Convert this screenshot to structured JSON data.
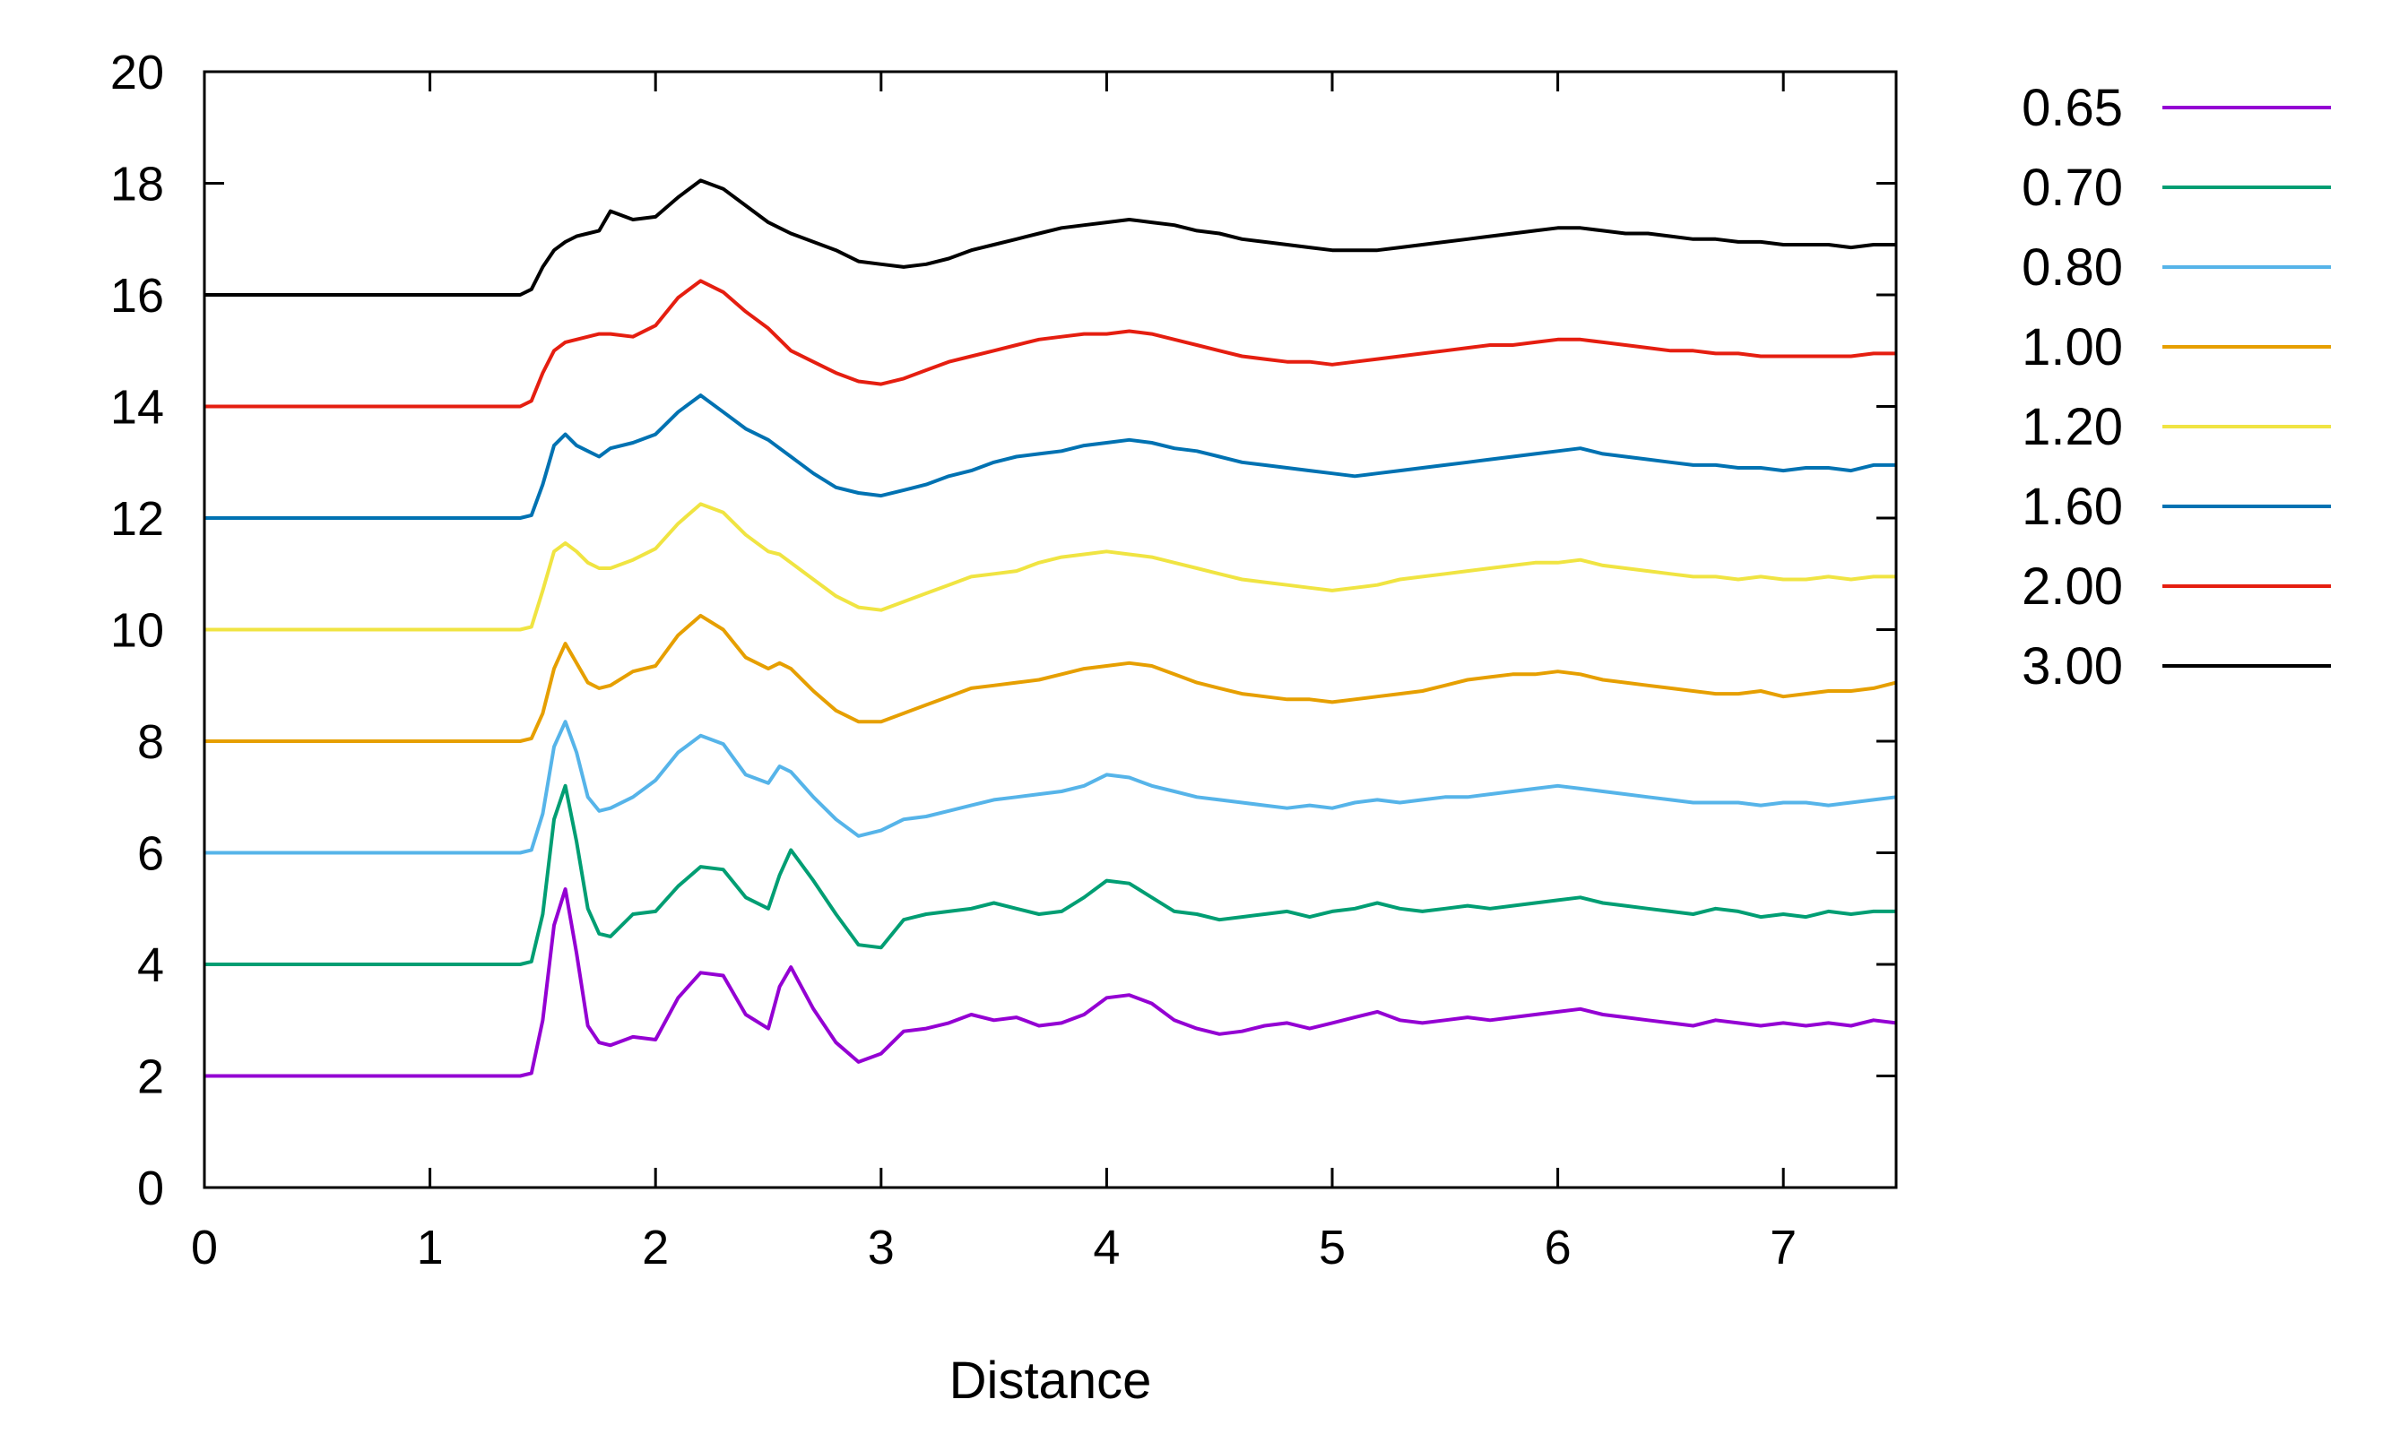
{
  "chart_data": {
    "type": "line",
    "title": "",
    "xlabel": "Distance",
    "ylabel": "",
    "xlim": [
      0,
      7.5
    ],
    "ylim": [
      0,
      20
    ],
    "x_ticks": [
      "0",
      "1",
      "2",
      "3",
      "4",
      "5",
      "6",
      "7"
    ],
    "y_ticks": [
      "0",
      "2",
      "4",
      "6",
      "8",
      "10",
      "12",
      "14",
      "16",
      "18",
      "20"
    ],
    "grid": false,
    "legend_position": "outside-right",
    "series": [
      {
        "name": "0.65",
        "color": "#9400d3",
        "offset": 2,
        "x": [
          1.4,
          1.45,
          1.5,
          1.55,
          1.6,
          1.65,
          1.7,
          1.75,
          1.8,
          1.9,
          2.0,
          2.1,
          2.2,
          2.3,
          2.4,
          2.5,
          2.55,
          2.6,
          2.7,
          2.8,
          2.9,
          3.0,
          3.1,
          3.2,
          3.3,
          3.4,
          3.5,
          3.6,
          3.7,
          3.8,
          3.9,
          4.0,
          4.1,
          4.2,
          4.3,
          4.4,
          4.5,
          4.6,
          4.7,
          4.8,
          4.9,
          5.0,
          5.1,
          5.2,
          5.3,
          5.4,
          5.5,
          5.6,
          5.7,
          5.8,
          5.9,
          6.0,
          6.1,
          6.2,
          6.3,
          6.4,
          6.5,
          6.6,
          6.7,
          6.8,
          6.9,
          7.0,
          7.1,
          7.2,
          7.3,
          7.4,
          7.5
        ],
        "y": [
          2.0,
          2.05,
          3.0,
          4.7,
          5.35,
          4.2,
          2.9,
          2.6,
          2.55,
          2.7,
          2.65,
          3.4,
          3.85,
          3.8,
          3.1,
          2.85,
          3.6,
          3.95,
          3.2,
          2.6,
          2.25,
          2.4,
          2.8,
          2.85,
          2.95,
          3.1,
          3.0,
          3.05,
          2.9,
          2.95,
          3.1,
          3.4,
          3.45,
          3.3,
          3.0,
          2.85,
          2.75,
          2.8,
          2.9,
          2.95,
          2.85,
          2.95,
          3.05,
          3.15,
          3.0,
          2.95,
          3.0,
          3.05,
          3.0,
          3.05,
          3.1,
          3.15,
          3.2,
          3.1,
          3.05,
          3.0,
          2.95,
          2.9,
          3.0,
          2.95,
          2.9,
          2.95,
          2.9,
          2.95,
          2.9,
          3.0,
          2.95
        ]
      },
      {
        "name": "0.70",
        "color": "#009e73",
        "offset": 4,
        "x": [
          1.4,
          1.45,
          1.5,
          1.55,
          1.6,
          1.65,
          1.7,
          1.75,
          1.8,
          1.9,
          2.0,
          2.1,
          2.2,
          2.3,
          2.4,
          2.5,
          2.55,
          2.6,
          2.7,
          2.8,
          2.9,
          3.0,
          3.1,
          3.2,
          3.3,
          3.4,
          3.5,
          3.6,
          3.7,
          3.8,
          3.9,
          4.0,
          4.1,
          4.2,
          4.3,
          4.4,
          4.5,
          4.6,
          4.7,
          4.8,
          4.9,
          5.0,
          5.1,
          5.2,
          5.3,
          5.4,
          5.5,
          5.6,
          5.7,
          5.8,
          5.9,
          6.0,
          6.1,
          6.2,
          6.3,
          6.4,
          6.5,
          6.6,
          6.7,
          6.8,
          6.9,
          7.0,
          7.1,
          7.2,
          7.3,
          7.4,
          7.5
        ],
        "y": [
          4.0,
          4.05,
          4.9,
          6.6,
          7.2,
          6.2,
          5.0,
          4.55,
          4.5,
          4.9,
          4.95,
          5.4,
          5.75,
          5.7,
          5.2,
          5.0,
          5.6,
          6.05,
          5.5,
          4.9,
          4.35,
          4.3,
          4.8,
          4.9,
          4.95,
          5.0,
          5.1,
          5.0,
          4.9,
          4.95,
          5.2,
          5.5,
          5.45,
          5.2,
          4.95,
          4.9,
          4.8,
          4.85,
          4.9,
          4.95,
          4.85,
          4.95,
          5.0,
          5.1,
          5.0,
          4.95,
          5.0,
          5.05,
          5.0,
          5.05,
          5.1,
          5.15,
          5.2,
          5.1,
          5.05,
          5.0,
          4.95,
          4.9,
          5.0,
          4.95,
          4.85,
          4.9,
          4.85,
          4.95,
          4.9,
          4.95,
          4.95
        ]
      },
      {
        "name": "0.80",
        "color": "#56b4e9",
        "offset": 6,
        "x": [
          1.4,
          1.45,
          1.5,
          1.55,
          1.6,
          1.65,
          1.7,
          1.75,
          1.8,
          1.9,
          2.0,
          2.1,
          2.2,
          2.3,
          2.4,
          2.5,
          2.55,
          2.6,
          2.7,
          2.8,
          2.9,
          3.0,
          3.1,
          3.2,
          3.3,
          3.4,
          3.5,
          3.6,
          3.7,
          3.8,
          3.9,
          4.0,
          4.1,
          4.2,
          4.3,
          4.4,
          4.5,
          4.6,
          4.7,
          4.8,
          4.9,
          5.0,
          5.1,
          5.2,
          5.3,
          5.4,
          5.5,
          5.6,
          5.7,
          5.8,
          5.9,
          6.0,
          6.1,
          6.2,
          6.3,
          6.4,
          6.5,
          6.6,
          6.7,
          6.8,
          6.9,
          7.0,
          7.1,
          7.2,
          7.3,
          7.4,
          7.5
        ],
        "y": [
          6.0,
          6.05,
          6.7,
          7.9,
          8.35,
          7.8,
          7.0,
          6.75,
          6.8,
          7.0,
          7.3,
          7.8,
          8.1,
          7.95,
          7.4,
          7.25,
          7.55,
          7.45,
          7.0,
          6.6,
          6.3,
          6.4,
          6.6,
          6.65,
          6.75,
          6.85,
          6.95,
          7.0,
          7.05,
          7.1,
          7.2,
          7.4,
          7.35,
          7.2,
          7.1,
          7.0,
          6.95,
          6.9,
          6.85,
          6.8,
          6.85,
          6.8,
          6.9,
          6.95,
          6.9,
          6.95,
          7.0,
          7.0,
          7.05,
          7.1,
          7.15,
          7.2,
          7.15,
          7.1,
          7.05,
          7.0,
          6.95,
          6.9,
          6.9,
          6.9,
          6.85,
          6.9,
          6.9,
          6.85,
          6.9,
          6.95,
          7.0
        ]
      },
      {
        "name": "1.00",
        "color": "#e69f00",
        "offset": 8,
        "x": [
          1.4,
          1.45,
          1.5,
          1.55,
          1.6,
          1.65,
          1.7,
          1.75,
          1.8,
          1.9,
          2.0,
          2.1,
          2.2,
          2.3,
          2.4,
          2.5,
          2.55,
          2.6,
          2.7,
          2.8,
          2.9,
          3.0,
          3.1,
          3.2,
          3.3,
          3.4,
          3.5,
          3.6,
          3.7,
          3.8,
          3.9,
          4.0,
          4.1,
          4.2,
          4.3,
          4.4,
          4.5,
          4.6,
          4.7,
          4.8,
          4.9,
          5.0,
          5.1,
          5.2,
          5.3,
          5.4,
          5.5,
          5.6,
          5.7,
          5.8,
          5.9,
          6.0,
          6.1,
          6.2,
          6.3,
          6.4,
          6.5,
          6.6,
          6.7,
          6.8,
          6.9,
          7.0,
          7.1,
          7.2,
          7.3,
          7.4,
          7.5
        ],
        "y": [
          8.0,
          8.05,
          8.5,
          9.3,
          9.75,
          9.4,
          9.05,
          8.95,
          9.0,
          9.25,
          9.35,
          9.9,
          10.25,
          10.0,
          9.5,
          9.3,
          9.4,
          9.3,
          8.9,
          8.55,
          8.35,
          8.35,
          8.5,
          8.65,
          8.8,
          8.95,
          9.0,
          9.05,
          9.1,
          9.2,
          9.3,
          9.35,
          9.4,
          9.35,
          9.2,
          9.05,
          8.95,
          8.85,
          8.8,
          8.75,
          8.75,
          8.7,
          8.75,
          8.8,
          8.85,
          8.9,
          9.0,
          9.1,
          9.15,
          9.2,
          9.2,
          9.25,
          9.2,
          9.1,
          9.05,
          9.0,
          8.95,
          8.9,
          8.85,
          8.85,
          8.9,
          8.8,
          8.85,
          8.9,
          8.9,
          8.95,
          9.05
        ]
      },
      {
        "name": "1.20",
        "color": "#f0e442",
        "offset": 10,
        "x": [
          1.4,
          1.45,
          1.5,
          1.55,
          1.6,
          1.65,
          1.7,
          1.75,
          1.8,
          1.9,
          2.0,
          2.1,
          2.2,
          2.3,
          2.4,
          2.5,
          2.55,
          2.6,
          2.7,
          2.8,
          2.9,
          3.0,
          3.1,
          3.2,
          3.3,
          3.4,
          3.5,
          3.6,
          3.7,
          3.8,
          3.9,
          4.0,
          4.1,
          4.2,
          4.3,
          4.4,
          4.5,
          4.6,
          4.7,
          4.8,
          4.9,
          5.0,
          5.1,
          5.2,
          5.3,
          5.4,
          5.5,
          5.6,
          5.7,
          5.8,
          5.9,
          6.0,
          6.1,
          6.2,
          6.3,
          6.4,
          6.5,
          6.6,
          6.7,
          6.8,
          6.9,
          7.0,
          7.1,
          7.2,
          7.3,
          7.4,
          7.5
        ],
        "y": [
          10.0,
          10.05,
          10.7,
          11.4,
          11.55,
          11.4,
          11.2,
          11.1,
          11.1,
          11.25,
          11.45,
          11.9,
          12.25,
          12.1,
          11.7,
          11.4,
          11.35,
          11.2,
          10.9,
          10.6,
          10.4,
          10.35,
          10.5,
          10.65,
          10.8,
          10.95,
          11.0,
          11.05,
          11.2,
          11.3,
          11.35,
          11.4,
          11.35,
          11.3,
          11.2,
          11.1,
          11.0,
          10.9,
          10.85,
          10.8,
          10.75,
          10.7,
          10.75,
          10.8,
          10.9,
          10.95,
          11.0,
          11.05,
          11.1,
          11.15,
          11.2,
          11.2,
          11.25,
          11.15,
          11.1,
          11.05,
          11.0,
          10.95,
          10.95,
          10.9,
          10.95,
          10.9,
          10.9,
          10.95,
          10.9,
          10.95,
          10.95
        ]
      },
      {
        "name": "1.60",
        "color": "#0072b2",
        "offset": 12,
        "x": [
          1.4,
          1.45,
          1.5,
          1.55,
          1.6,
          1.65,
          1.7,
          1.75,
          1.8,
          1.9,
          2.0,
          2.1,
          2.2,
          2.3,
          2.4,
          2.5,
          2.55,
          2.6,
          2.7,
          2.8,
          2.9,
          3.0,
          3.1,
          3.2,
          3.3,
          3.4,
          3.5,
          3.6,
          3.7,
          3.8,
          3.9,
          4.0,
          4.1,
          4.2,
          4.3,
          4.4,
          4.5,
          4.6,
          4.7,
          4.8,
          4.9,
          5.0,
          5.1,
          5.2,
          5.3,
          5.4,
          5.5,
          5.6,
          5.7,
          5.8,
          5.9,
          6.0,
          6.1,
          6.2,
          6.3,
          6.4,
          6.5,
          6.6,
          6.7,
          6.8,
          6.9,
          7.0,
          7.1,
          7.2,
          7.3,
          7.4,
          7.5
        ],
        "y": [
          12.0,
          12.05,
          12.6,
          13.3,
          13.5,
          13.3,
          13.2,
          13.1,
          13.25,
          13.35,
          13.5,
          13.9,
          14.2,
          13.9,
          13.6,
          13.4,
          13.25,
          13.1,
          12.8,
          12.55,
          12.45,
          12.4,
          12.5,
          12.6,
          12.75,
          12.85,
          13.0,
          13.1,
          13.15,
          13.2,
          13.3,
          13.35,
          13.4,
          13.35,
          13.25,
          13.2,
          13.1,
          13.0,
          12.95,
          12.9,
          12.85,
          12.8,
          12.75,
          12.8,
          12.85,
          12.9,
          12.95,
          13.0,
          13.05,
          13.1,
          13.15,
          13.2,
          13.25,
          13.15,
          13.1,
          13.05,
          13.0,
          12.95,
          12.95,
          12.9,
          12.9,
          12.85,
          12.9,
          12.9,
          12.85,
          12.95,
          12.95
        ]
      },
      {
        "name": "2.00",
        "color": "#e51e10",
        "offset": 14,
        "x": [
          1.4,
          1.45,
          1.5,
          1.55,
          1.6,
          1.65,
          1.7,
          1.75,
          1.8,
          1.9,
          2.0,
          2.1,
          2.2,
          2.3,
          2.4,
          2.5,
          2.55,
          2.6,
          2.7,
          2.8,
          2.9,
          3.0,
          3.1,
          3.2,
          3.3,
          3.4,
          3.5,
          3.6,
          3.7,
          3.8,
          3.9,
          4.0,
          4.1,
          4.2,
          4.3,
          4.4,
          4.5,
          4.6,
          4.7,
          4.8,
          4.9,
          5.0,
          5.1,
          5.2,
          5.3,
          5.4,
          5.5,
          5.6,
          5.7,
          5.8,
          5.9,
          6.0,
          6.1,
          6.2,
          6.3,
          6.4,
          6.5,
          6.6,
          6.7,
          6.8,
          6.9,
          7.0,
          7.1,
          7.2,
          7.3,
          7.4,
          7.5
        ],
        "y": [
          14.0,
          14.1,
          14.6,
          15.0,
          15.15,
          15.2,
          15.25,
          15.3,
          15.3,
          15.25,
          15.45,
          15.95,
          16.25,
          16.05,
          15.7,
          15.4,
          15.2,
          15.0,
          14.8,
          14.6,
          14.45,
          14.4,
          14.5,
          14.65,
          14.8,
          14.9,
          15.0,
          15.1,
          15.2,
          15.25,
          15.3,
          15.3,
          15.35,
          15.3,
          15.2,
          15.1,
          15.0,
          14.9,
          14.85,
          14.8,
          14.8,
          14.75,
          14.8,
          14.85,
          14.9,
          14.95,
          15.0,
          15.05,
          15.1,
          15.1,
          15.15,
          15.2,
          15.2,
          15.15,
          15.1,
          15.05,
          15.0,
          15.0,
          14.95,
          14.95,
          14.9,
          14.9,
          14.9,
          14.9,
          14.9,
          14.95,
          14.95
        ]
      },
      {
        "name": "3.00",
        "color": "#000000",
        "offset": 16,
        "x": [
          1.4,
          1.45,
          1.5,
          1.55,
          1.6,
          1.65,
          1.7,
          1.75,
          1.8,
          1.9,
          2.0,
          2.1,
          2.2,
          2.3,
          2.4,
          2.5,
          2.55,
          2.6,
          2.7,
          2.8,
          2.9,
          3.0,
          3.1,
          3.2,
          3.3,
          3.4,
          3.5,
          3.6,
          3.7,
          3.8,
          3.9,
          4.0,
          4.1,
          4.2,
          4.3,
          4.4,
          4.5,
          4.6,
          4.7,
          4.8,
          4.9,
          5.0,
          5.1,
          5.2,
          5.3,
          5.4,
          5.5,
          5.6,
          5.7,
          5.8,
          5.9,
          6.0,
          6.1,
          6.2,
          6.3,
          6.4,
          6.5,
          6.6,
          6.7,
          6.8,
          6.9,
          7.0,
          7.1,
          7.2,
          7.3,
          7.4,
          7.5
        ],
        "y": [
          16.0,
          16.1,
          16.5,
          16.8,
          16.95,
          17.05,
          17.1,
          17.15,
          17.5,
          17.35,
          17.4,
          17.75,
          18.05,
          17.9,
          17.6,
          17.3,
          17.2,
          17.1,
          16.95,
          16.8,
          16.6,
          16.55,
          16.5,
          16.55,
          16.65,
          16.8,
          16.9,
          17.0,
          17.1,
          17.2,
          17.25,
          17.3,
          17.35,
          17.3,
          17.25,
          17.15,
          17.1,
          17.0,
          16.95,
          16.9,
          16.85,
          16.8,
          16.8,
          16.8,
          16.85,
          16.9,
          16.95,
          17.0,
          17.05,
          17.1,
          17.15,
          17.2,
          17.2,
          17.15,
          17.1,
          17.1,
          17.05,
          17.0,
          17.0,
          16.95,
          16.95,
          16.9,
          16.9,
          16.9,
          16.85,
          16.9,
          16.9
        ]
      }
    ]
  }
}
